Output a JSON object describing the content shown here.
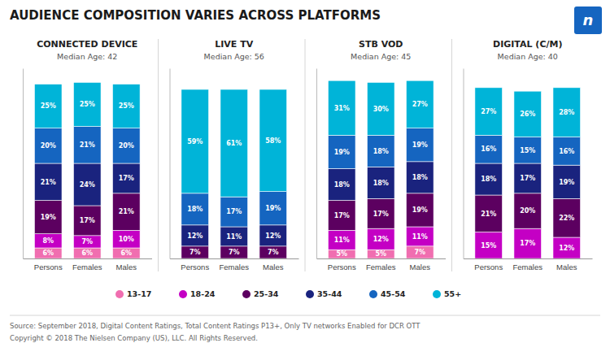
{
  "title": "AUDIENCE COMPOSITION VARIES ACROSS PLATFORMS",
  "logo": "n",
  "annotations": [
    "Source: September 2018, Digital Content Ratings, Total Content Ratings P13+, Only TV networks Enabled for DCR OTT",
    "Copyright © 2018 The Nielsen Company (US), LLC. All Rights Reserved."
  ],
  "chart_data": [
    {
      "type": "bar",
      "stacked": true,
      "data_labels": true,
      "tick_labels": "x",
      "legend": "bottom",
      "title": "CONNECTED DEVICE",
      "subtitle": "Median Age: 42",
      "categories": [
        "Persons",
        "Females",
        "Males"
      ],
      "ylim": [
        0,
        108
      ],
      "series": [
        {
          "name": "13-17",
          "color": "#f06eb0",
          "values": [
            6,
            6,
            6
          ],
          "value_labels": [
            "6%",
            "6%",
            "6%"
          ]
        },
        {
          "name": "18-24",
          "color": "#c400c4",
          "values": [
            8,
            7,
            10
          ],
          "value_labels": [
            "8%",
            "7%",
            "10%"
          ]
        },
        {
          "name": "25-34",
          "color": "#5c0060",
          "values": [
            19,
            17,
            21
          ],
          "value_labels": [
            "19%",
            "17%",
            "21%"
          ]
        },
        {
          "name": "35-44",
          "color": "#1a237e",
          "values": [
            21,
            24,
            17
          ],
          "value_labels": [
            "21%",
            "24%",
            "17%"
          ]
        },
        {
          "name": "45-54",
          "color": "#1565c0",
          "values": [
            20,
            21,
            20
          ],
          "value_labels": [
            "20%",
            "21%",
            "20%"
          ]
        },
        {
          "name": "55+",
          "color": "#00b4d8",
          "values": [
            25,
            25,
            25
          ],
          "value_labels": [
            "25%",
            "25%",
            "25%"
          ]
        }
      ]
    },
    {
      "type": "bar",
      "stacked": true,
      "data_labels": true,
      "tick_labels": "x",
      "title": "LIVE TV",
      "subtitle": "Median Age: 56",
      "categories": [
        "Persons",
        "Females",
        "Males"
      ],
      "ylim": [
        0,
        108
      ],
      "series": [
        {
          "name": "13-17",
          "color": "#f06eb0",
          "values": [
            0,
            0,
            0
          ],
          "value_labels": [
            null,
            null,
            null
          ]
        },
        {
          "name": "18-24",
          "color": "#c400c4",
          "values": [
            0,
            0,
            0
          ],
          "value_labels": [
            null,
            null,
            null
          ]
        },
        {
          "name": "25-34",
          "color": "#5c0060",
          "values": [
            7,
            7,
            7
          ],
          "value_labels": [
            "7%",
            "7%",
            "7%"
          ]
        },
        {
          "name": "35-44",
          "color": "#1a237e",
          "values": [
            12,
            11,
            12
          ],
          "value_labels": [
            "12%",
            "11%",
            "12%"
          ]
        },
        {
          "name": "45-54",
          "color": "#1565c0",
          "values": [
            18,
            17,
            19
          ],
          "value_labels": [
            "18%",
            "17%",
            "19%"
          ]
        },
        {
          "name": "55+",
          "color": "#00b4d8",
          "values": [
            59,
            61,
            58
          ],
          "value_labels": [
            "59%",
            "61%",
            "58%"
          ]
        }
      ]
    },
    {
      "type": "bar",
      "stacked": true,
      "data_labels": true,
      "tick_labels": "x",
      "title": "STB VOD",
      "subtitle": "Median Age: 45",
      "categories": [
        "Persons",
        "Females",
        "Males"
      ],
      "ylim": [
        0,
        108
      ],
      "series": [
        {
          "name": "13-17",
          "color": "#f06eb0",
          "values": [
            5,
            5,
            7
          ],
          "value_labels": [
            "5%",
            "5%",
            "7%"
          ]
        },
        {
          "name": "18-24",
          "color": "#c400c4",
          "values": [
            11,
            12,
            11
          ],
          "value_labels": [
            "11%",
            "12%",
            "11%"
          ]
        },
        {
          "name": "25-34",
          "color": "#5c0060",
          "values": [
            17,
            17,
            19
          ],
          "value_labels": [
            "17%",
            "17%",
            "19%"
          ]
        },
        {
          "name": "35-44",
          "color": "#1a237e",
          "values": [
            18,
            18,
            18
          ],
          "value_labels": [
            "18%",
            "18%",
            "18%"
          ]
        },
        {
          "name": "45-54",
          "color": "#1565c0",
          "values": [
            19,
            18,
            19
          ],
          "value_labels": [
            "19%",
            "18%",
            "19%"
          ]
        },
        {
          "name": "55+",
          "color": "#00b4d8",
          "values": [
            31,
            30,
            27
          ],
          "value_labels": [
            "31%",
            "30%",
            "27%"
          ]
        }
      ]
    },
    {
      "type": "bar",
      "stacked": true,
      "data_labels": true,
      "tick_labels": "x",
      "title": "DIGITAL (C/M)",
      "subtitle": "Median Age: 40",
      "categories": [
        "Persons",
        "Females",
        "Males"
      ],
      "ylim": [
        0,
        108
      ],
      "series": [
        {
          "name": "13-17",
          "color": "#f06eb0",
          "values": [
            0,
            0,
            0
          ],
          "value_labels": [
            null,
            null,
            null
          ]
        },
        {
          "name": "18-24",
          "color": "#c400c4",
          "values": [
            15,
            17,
            12
          ],
          "value_labels": [
            "15%",
            "17%",
            "12%"
          ]
        },
        {
          "name": "25-34",
          "color": "#5c0060",
          "values": [
            21,
            20,
            22
          ],
          "value_labels": [
            "21%",
            "20%",
            "22%"
          ]
        },
        {
          "name": "35-44",
          "color": "#1a237e",
          "values": [
            18,
            17,
            19
          ],
          "value_labels": [
            "18%",
            "17%",
            "19%"
          ]
        },
        {
          "name": "45-54",
          "color": "#1565c0",
          "values": [
            16,
            15,
            16
          ],
          "value_labels": [
            "16%",
            "15%",
            "16%"
          ]
        },
        {
          "name": "55+",
          "color": "#00b4d8",
          "values": [
            27,
            26,
            28
          ],
          "value_labels": [
            "27%",
            "26%",
            "28%"
          ]
        }
      ]
    }
  ]
}
